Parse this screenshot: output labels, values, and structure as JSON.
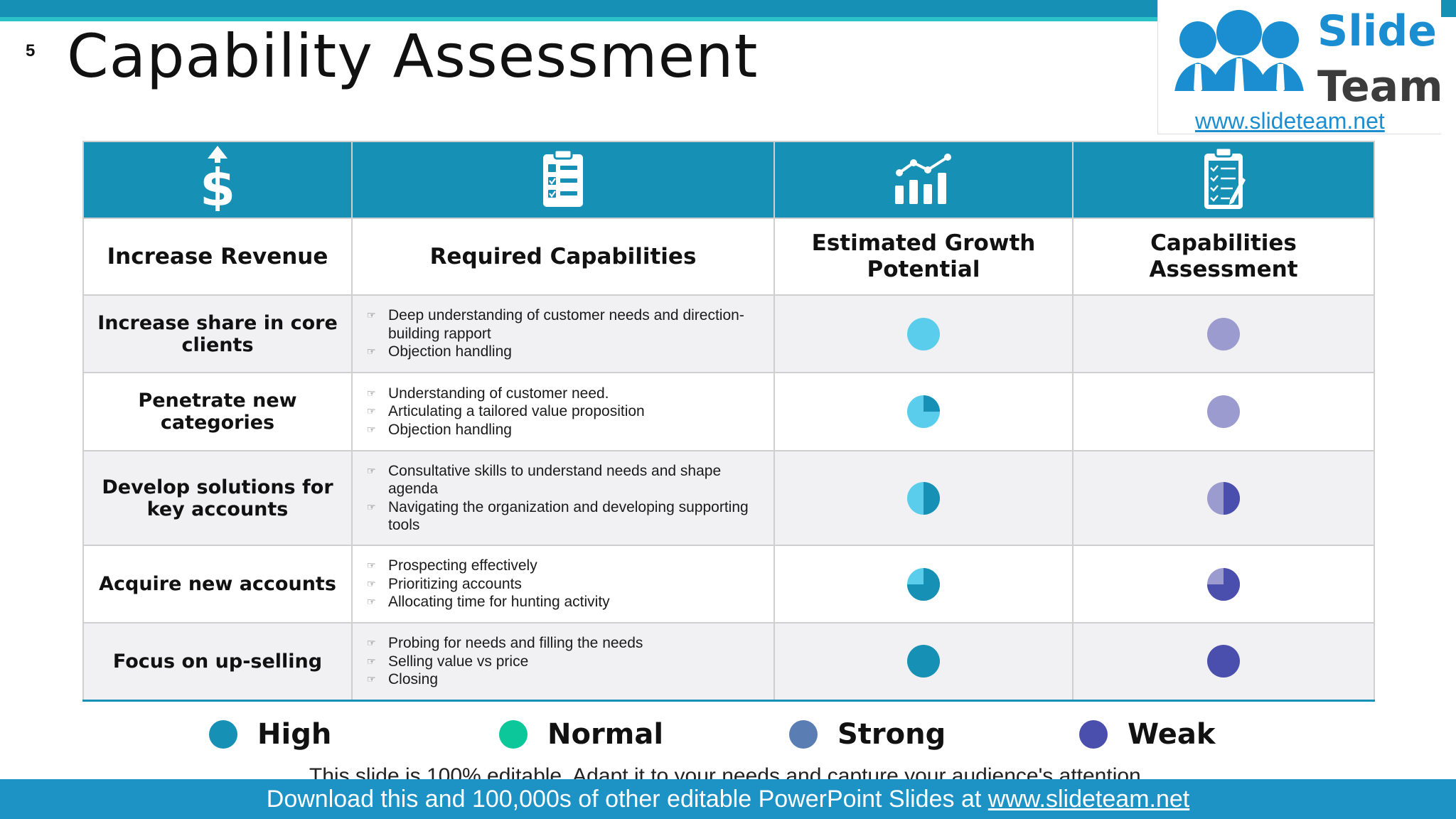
{
  "slide": {
    "number": "5",
    "title": "Capability Assessment"
  },
  "logo": {
    "word1": "Slide",
    "word2": "Team",
    "url": "www.slideteam.net",
    "color_blue": "#1a8ed0",
    "color_dark": "#3c3c3c"
  },
  "colors": {
    "header_bg": "#1690b4",
    "high": "#1690b4",
    "normal": "#0cc79a",
    "strong": "#5a7eb4",
    "weak": "#4a4fae",
    "growth_light": "#5bcdec",
    "assess_light": "#9b9bd0"
  },
  "table": {
    "icons": [
      "dollar-icon",
      "clipboard-list-icon",
      "growth-chart-icon",
      "checklist-icon"
    ],
    "headers": [
      "Increase Revenue",
      "Required Capabilities",
      "Estimated Growth Potential",
      "Capabilities Assessment"
    ],
    "rows": [
      {
        "label": "Increase share in core clients",
        "capabilities": [
          "Deep understanding of customer needs and direction-building rapport",
          "Objection handling"
        ],
        "growth_fill": 0,
        "assessment_fill": 0
      },
      {
        "label": "Penetrate new categories",
        "capabilities": [
          "Understanding of customer need.",
          "Articulating a tailored value proposition",
          "Objection handling"
        ],
        "growth_fill": 0.25,
        "assessment_fill": 0
      },
      {
        "label": "Develop solutions for key accounts",
        "capabilities": [
          "Consultative skills to understand needs and shape agenda",
          "Navigating the organization and developing supporting tools"
        ],
        "growth_fill": 0.5,
        "assessment_fill": 0.5
      },
      {
        "label": "Acquire new accounts",
        "capabilities": [
          "Prospecting effectively",
          "Prioritizing accounts",
          "Allocating time for hunting activity"
        ],
        "growth_fill": 0.75,
        "assessment_fill": 0.75
      },
      {
        "label": "Focus on up-selling",
        "capabilities": [
          "Probing for needs and filling the needs",
          "Selling value vs price",
          "Closing"
        ],
        "growth_fill": 1,
        "assessment_fill": 1
      }
    ]
  },
  "legend": [
    {
      "label": "High",
      "color": "#1690b4"
    },
    {
      "label": "Normal",
      "color": "#0cc79a"
    },
    {
      "label": "Strong",
      "color": "#5a7eb4"
    },
    {
      "label": "Weak",
      "color": "#4a4fae"
    }
  ],
  "footer": {
    "note": "This slide is 100% editable. Adapt it to your needs and capture your audience's attention.",
    "download_text": "Download this and 100,000s of other editable PowerPoint Slides at ",
    "download_link": "www.slideteam.net"
  }
}
